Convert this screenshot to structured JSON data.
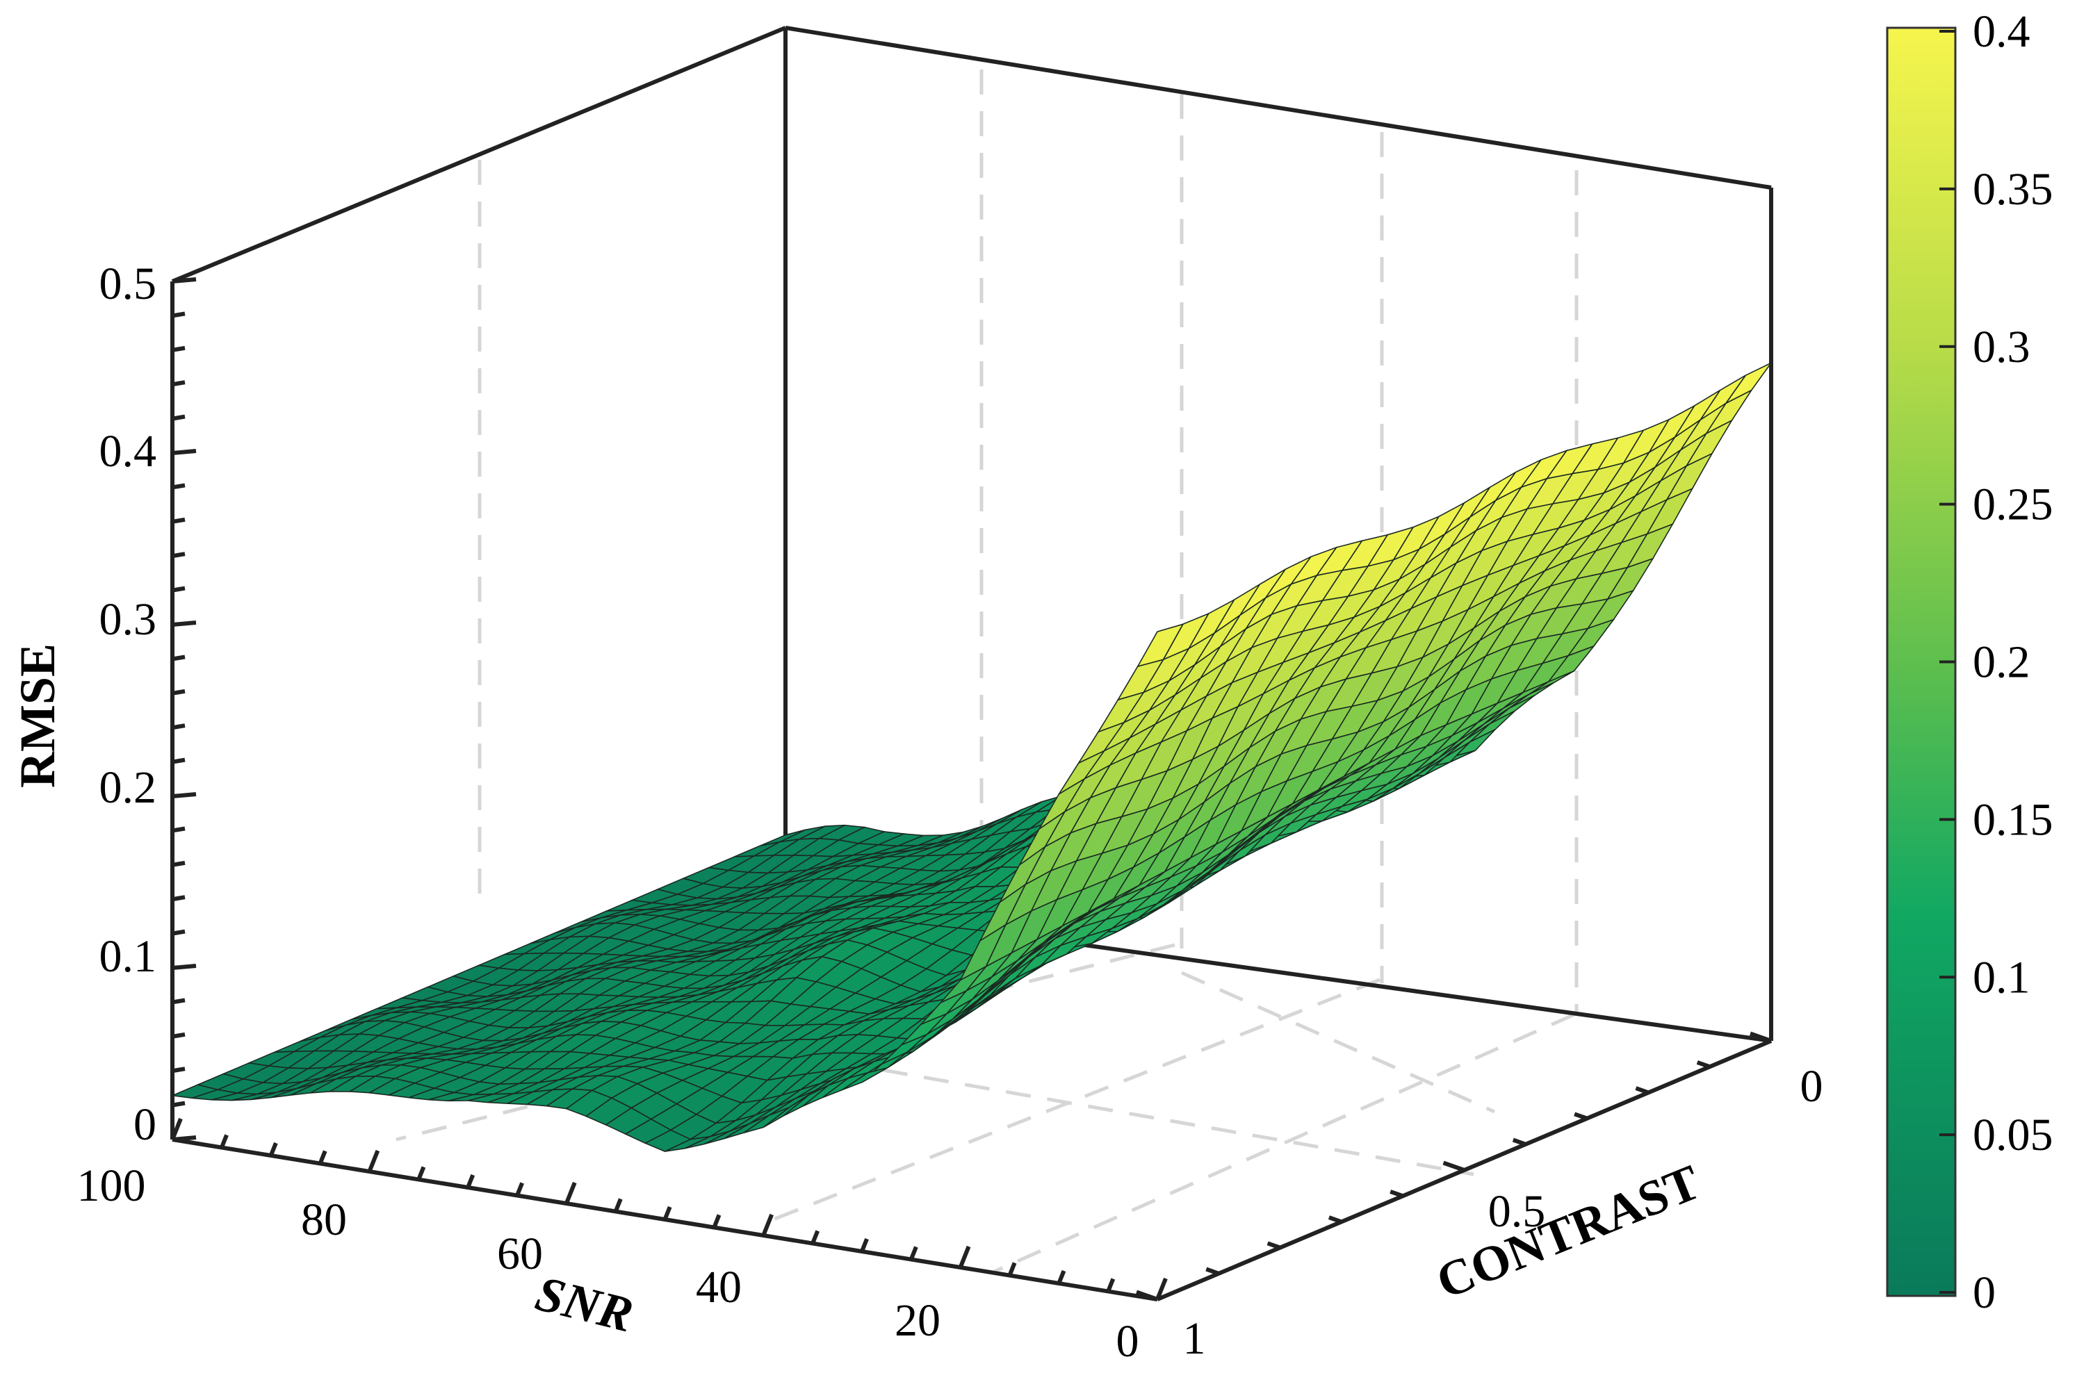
{
  "chart_data": {
    "type": "surface3d",
    "title": "",
    "xlabel": "SNR",
    "ylabel": "CONTRAST",
    "zlabel": "RMSE",
    "xlim": [
      0,
      100
    ],
    "ylim": [
      0,
      1
    ],
    "zlim": [
      0,
      0.5
    ],
    "x_ticks": [
      "100",
      "80",
      "60",
      "40",
      "20",
      "0"
    ],
    "y_ticks": [
      "0",
      "0.5",
      "1"
    ],
    "z_ticks": [
      "0",
      "0.1",
      "0.2",
      "0.3",
      "0.4",
      "0.5"
    ],
    "colorbar": {
      "ticks": [
        "0",
        "0.05",
        "0.1",
        "0.15",
        "0.2",
        "0.25",
        "0.3",
        "0.35",
        "0.4"
      ],
      "range": [
        0,
        0.4
      ],
      "colormap": [
        "#0a7a5a",
        "#11a862",
        "#5fbf4e",
        "#b8dc48",
        "#f6f54d"
      ]
    },
    "grid": "dashed",
    "surface": {
      "snr": [
        100,
        90,
        80,
        70,
        60,
        50,
        40,
        30,
        20,
        10,
        0
      ],
      "contrast": [
        0,
        0.25,
        0.5,
        0.75,
        1
      ],
      "rmse": [
        [
          0.02,
          0.02,
          0.02,
          0.02,
          0.02
        ],
        [
          0.03,
          0.03,
          0.03,
          0.03,
          0.03
        ],
        [
          0.05,
          0.04,
          0.04,
          0.04,
          0.04
        ],
        [
          0.07,
          0.06,
          0.06,
          0.05,
          0.05
        ],
        [
          0.1,
          0.09,
          0.08,
          0.06,
          0.05
        ],
        [
          0.12,
          0.1,
          0.08,
          0.06,
          0.04
        ],
        [
          0.13,
          0.12,
          0.11,
          0.08,
          0.06
        ],
        [
          0.14,
          0.14,
          0.13,
          0.12,
          0.1
        ],
        [
          0.2,
          0.2,
          0.19,
          0.18,
          0.17
        ],
        [
          0.3,
          0.3,
          0.3,
          0.3,
          0.29
        ],
        [
          0.4,
          0.4,
          0.4,
          0.4,
          0.4
        ]
      ]
    }
  }
}
